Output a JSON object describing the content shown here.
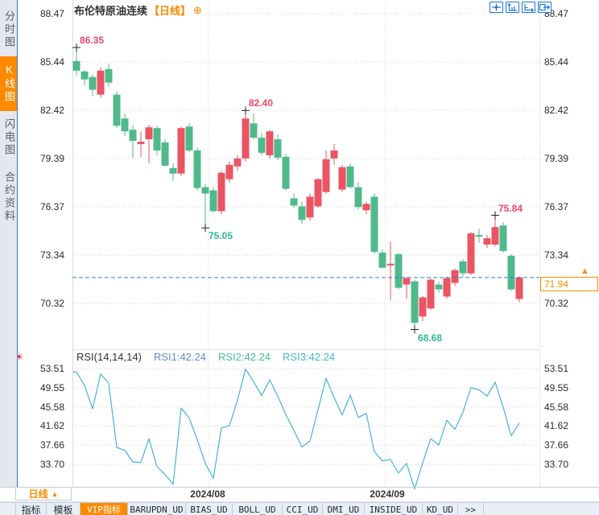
{
  "colors": {
    "up_candle": "#eb5462",
    "down_candle": "#50b98b",
    "accent_orange": "#ff8a00",
    "icon_blue": "#1b7ad2",
    "last_price_line": "#2b7fd6",
    "rsi_line": "#47b3d8",
    "high_label": "#f04864",
    "low_label": "#2fb896"
  },
  "sidebar": {
    "items": [
      {
        "label": "分时图",
        "active": false
      },
      {
        "label": "K线图",
        "active": true
      },
      {
        "label": "闪电图",
        "active": false
      },
      {
        "label": "合约资料",
        "active": false
      }
    ]
  },
  "header": {
    "title": "布伦特原油连续",
    "period_tag": "【日线】",
    "plus_icon": "⊕",
    "icons": [
      "move-crosshair-icon",
      "y-axis-scale-icon",
      "x-axis-scale-icon",
      "export-chart-icon"
    ]
  },
  "chart_data": {
    "type": "candlestick",
    "title": "布伦特原油连续 日线",
    "price_axis_ticks": [
      "88.47",
      "85.44",
      "82.42",
      "79.39",
      "76.37",
      "73.34",
      "70.32"
    ],
    "date_ticks": [
      "2024/08",
      "2024/09"
    ],
    "last_price": "71.94",
    "candles_ohlc": [
      [
        85.5,
        86.35,
        84.6,
        84.9
      ],
      [
        84.85,
        84.95,
        84.0,
        84.35
      ],
      [
        84.5,
        84.65,
        83.3,
        83.7
      ],
      [
        83.4,
        85.1,
        83.2,
        84.9
      ],
      [
        85.0,
        85.35,
        83.9,
        84.15
      ],
      [
        83.4,
        83.6,
        81.3,
        81.45
      ],
      [
        81.9,
        82.2,
        80.8,
        81.1
      ],
      [
        81.2,
        81.5,
        79.4,
        80.5
      ],
      [
        80.3,
        81.1,
        79.5,
        80.45
      ],
      [
        80.6,
        81.5,
        79.1,
        81.35
      ],
      [
        81.3,
        81.45,
        79.6,
        79.9
      ],
      [
        80.4,
        80.6,
        78.9,
        78.95
      ],
      [
        78.8,
        79.1,
        78.0,
        78.45
      ],
      [
        78.45,
        81.4,
        78.3,
        81.3
      ],
      [
        81.4,
        81.6,
        79.8,
        79.9
      ],
      [
        79.9,
        80.1,
        77.4,
        77.55
      ],
      [
        77.6,
        77.8,
        75.05,
        77.2
      ],
      [
        77.4,
        77.6,
        76.0,
        76.1
      ],
      [
        76.1,
        78.6,
        75.9,
        78.5
      ],
      [
        78.1,
        79.2,
        77.9,
        79.0
      ],
      [
        78.9,
        79.6,
        78.6,
        79.4
      ],
      [
        79.4,
        82.4,
        79.2,
        81.9
      ],
      [
        81.6,
        82.2,
        80.6,
        80.7
      ],
      [
        80.7,
        81.0,
        79.6,
        79.75
      ],
      [
        79.6,
        81.2,
        79.4,
        81.1
      ],
      [
        80.6,
        80.9,
        79.3,
        79.45
      ],
      [
        79.5,
        79.7,
        77.4,
        77.5
      ],
      [
        76.9,
        77.2,
        76.3,
        76.45
      ],
      [
        76.4,
        76.7,
        75.3,
        75.55
      ],
      [
        75.7,
        77.2,
        75.5,
        77.0
      ],
      [
        76.4,
        78.2,
        76.3,
        78.1
      ],
      [
        77.3,
        79.9,
        77.2,
        79.35
      ],
      [
        79.4,
        80.3,
        79.0,
        79.9
      ],
      [
        77.45,
        79.0,
        77.3,
        78.85
      ],
      [
        78.9,
        79.1,
        77.5,
        77.6
      ],
      [
        77.6,
        77.9,
        76.2,
        76.35
      ],
      [
        76.15,
        76.7,
        75.9,
        76.55
      ],
      [
        77.0,
        77.2,
        73.4,
        73.55
      ],
      [
        73.5,
        73.7,
        72.5,
        72.55
      ],
      [
        72.7,
        74.2,
        70.5,
        72.8
      ],
      [
        73.4,
        73.5,
        71.2,
        71.3
      ],
      [
        71.5,
        72.0,
        70.6,
        71.9
      ],
      [
        71.7,
        71.8,
        68.68,
        69.1
      ],
      [
        69.5,
        70.8,
        69.2,
        70.7
      ],
      [
        70.0,
        71.9,
        69.9,
        71.8
      ],
      [
        71.5,
        71.7,
        71.0,
        71.2
      ],
      [
        70.75,
        72.0,
        70.6,
        71.9
      ],
      [
        71.6,
        72.5,
        71.4,
        72.4
      ],
      [
        72.95,
        73.1,
        72.0,
        72.2
      ],
      [
        72.2,
        74.8,
        72.1,
        74.7
      ],
      [
        74.6,
        75.0,
        74.1,
        74.5
      ],
      [
        74.0,
        74.6,
        73.8,
        74.4
      ],
      [
        74.0,
        75.84,
        73.9,
        75.1
      ],
      [
        75.2,
        75.4,
        73.5,
        73.6
      ],
      [
        73.3,
        73.4,
        71.1,
        71.2
      ],
      [
        70.6,
        72.0,
        70.4,
        71.94
      ]
    ],
    "extreme_markers": [
      {
        "candle": 0,
        "type": "high",
        "label": "86.35"
      },
      {
        "candle": 21,
        "type": "high",
        "label": "82.40"
      },
      {
        "candle": 16,
        "type": "low",
        "label": "75.05"
      },
      {
        "candle": 42,
        "type": "low",
        "label": "68.68"
      },
      {
        "candle": 52,
        "type": "high",
        "label": "75.84"
      }
    ],
    "rsi": {
      "label": "RSI(14,14,14)",
      "legend": [
        {
          "label": "RSI1:42.24",
          "color": "#5b8fd0"
        },
        {
          "label": "RSI2:42.24",
          "color": "#47bd92"
        },
        {
          "label": "RSI3:42.24",
          "color": "#47b3d8"
        }
      ],
      "axis_ticks": [
        "53.51",
        "49.55",
        "45.58",
        "41.62",
        "37.66",
        "33.70"
      ],
      "values": [
        52.8,
        50.0,
        45.2,
        52.4,
        50.5,
        37.2,
        36.6,
        34.2,
        34.1,
        39.0,
        33.2,
        31.6,
        29.6,
        45.3,
        43.3,
        38.8,
        33.9,
        30.8,
        41.2,
        41.7,
        47.0,
        53.4,
        50.8,
        47.9,
        51.2,
        47.8,
        44.0,
        40.7,
        37.3,
        38.5,
        45.0,
        51.5,
        47.5,
        43.9,
        48.0,
        43.4,
        44.2,
        36.3,
        34.4,
        34.7,
        31.9,
        33.9,
        28.6,
        34.0,
        39.0,
        37.7,
        42.8,
        40.9,
        44.5,
        49.6,
        49.1,
        47.8,
        50.7,
        45.5,
        39.6,
        42.24
      ]
    }
  },
  "period_selector": {
    "label": "日线",
    "arrow": "▲"
  },
  "bottom_toolbar": {
    "tabs": [
      {
        "label": "指标",
        "active": false
      },
      {
        "label": "模板",
        "active": false
      },
      {
        "label": "VIP指标",
        "active": true
      },
      {
        "label": "BARUPDN_UD",
        "active": false
      },
      {
        "label": "BIAS_UD",
        "active": false
      },
      {
        "label": "BOLL_UD",
        "active": false
      },
      {
        "label": "CCI_UD",
        "active": false
      },
      {
        "label": "DMI_UD",
        "active": false
      },
      {
        "label": "INSIDE_UD",
        "active": false
      },
      {
        "label": "KD_UD",
        "active": false
      },
      {
        "label": ">>",
        "active": false
      }
    ]
  }
}
